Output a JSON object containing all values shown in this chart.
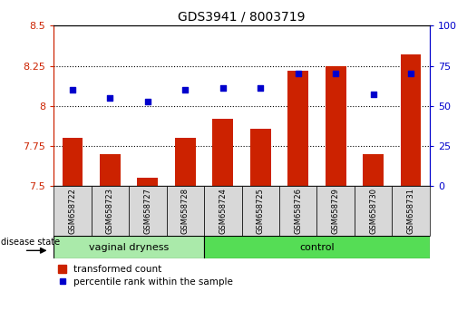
{
  "title": "GDS3941 / 8003719",
  "samples": [
    "GSM658722",
    "GSM658723",
    "GSM658727",
    "GSM658728",
    "GSM658724",
    "GSM658725",
    "GSM658726",
    "GSM658729",
    "GSM658730",
    "GSM658731"
  ],
  "transformed_count": [
    7.8,
    7.7,
    7.55,
    7.8,
    7.92,
    7.86,
    8.22,
    8.25,
    7.7,
    8.32
  ],
  "percentile_rank": [
    60,
    55,
    53,
    60,
    61,
    61,
    70,
    70,
    57,
    70
  ],
  "ylim_left": [
    7.5,
    8.5
  ],
  "ylim_right": [
    0,
    100
  ],
  "yticks_left": [
    7.5,
    7.75,
    8.0,
    8.25,
    8.5
  ],
  "ytick_labels_left": [
    "7.5",
    "7.75",
    "8",
    "8.25",
    "8.5"
  ],
  "yticks_right": [
    0,
    25,
    50,
    75,
    100
  ],
  "ytick_labels_right": [
    "0",
    "25",
    "50",
    "75",
    "100"
  ],
  "group_labels": [
    "vaginal dryness",
    "control"
  ],
  "group_colors": [
    "#aaeaaa",
    "#55dd55"
  ],
  "group_split": 4,
  "left_axis_color": "#cc2200",
  "right_axis_color": "#0000cc",
  "bar_color": "#cc2200",
  "dot_color": "#0000cc",
  "bar_bottom": 7.5,
  "bar_width": 0.55,
  "label_area_color": "#d8d8d8",
  "legend_bar_label": "transformed count",
  "legend_dot_label": "percentile rank within the sample",
  "disease_state_label": "disease state"
}
